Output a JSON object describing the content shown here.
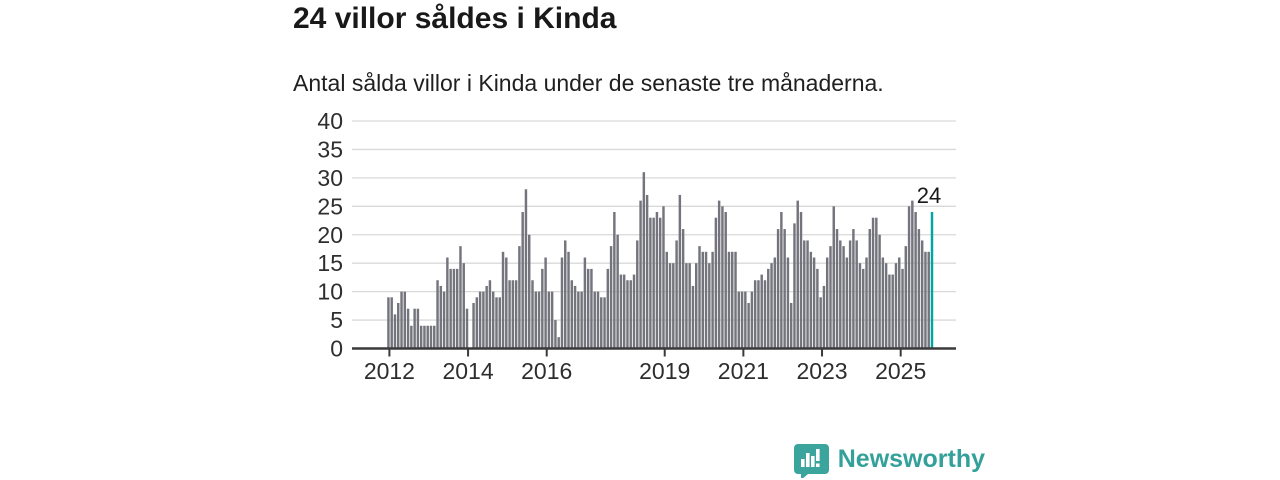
{
  "header": {
    "title": "24 villor såldes i Kinda",
    "subtitle": "Antal sålda villor i Kinda under de senaste tre månaderna."
  },
  "chart_data": {
    "type": "bar",
    "title": "24 villor såldes i Kinda",
    "subtitle": "Antal sålda villor i Kinda under de senaste tre månaderna.",
    "ylabel": "",
    "xlabel": "",
    "ylim": [
      0,
      40
    ],
    "yticks": [
      0,
      5,
      10,
      15,
      20,
      25,
      30,
      35,
      40
    ],
    "grid": "horizontal",
    "x_tick_labels": [
      "2012",
      "2014",
      "2016",
      "2019",
      "2021",
      "2023",
      "2025"
    ],
    "x_tick_years": [
      2012,
      2014,
      2016,
      2019,
      2021,
      2023,
      2025
    ],
    "start_year": 2012,
    "frequency": "monthly",
    "values": [
      9,
      9,
      6,
      8,
      10,
      10,
      7,
      4,
      7,
      7,
      4,
      4,
      4,
      4,
      4,
      12,
      11,
      10,
      16,
      14,
      14,
      14,
      18,
      15,
      7,
      0,
      8,
      9,
      10,
      10,
      11,
      12,
      10,
      9,
      9,
      17,
      16,
      12,
      12,
      12,
      18,
      24,
      28,
      20,
      12,
      10,
      10,
      14,
      16,
      10,
      10,
      5,
      2,
      16,
      19,
      17,
      12,
      11,
      10,
      10,
      16,
      14,
      14,
      10,
      10,
      9,
      9,
      14,
      18,
      24,
      20,
      13,
      13,
      12,
      12,
      13,
      19,
      26,
      31,
      27,
      23,
      23,
      24,
      23,
      25,
      17,
      15,
      15,
      19,
      27,
      21,
      15,
      15,
      11,
      15,
      18,
      17,
      17,
      15,
      17,
      23,
      26,
      25,
      24,
      17,
      17,
      17,
      10,
      10,
      10,
      8,
      10,
      12,
      12,
      13,
      12,
      14,
      15,
      16,
      21,
      24,
      21,
      16,
      8,
      22,
      26,
      24,
      19,
      19,
      17,
      16,
      14,
      9,
      11,
      16,
      18,
      25,
      21,
      19,
      18,
      16,
      19,
      21,
      19,
      15,
      14,
      16,
      21,
      23,
      23,
      20,
      16,
      15,
      13,
      13,
      15,
      16,
      14,
      18,
      25,
      26,
      24,
      21,
      19,
      17,
      17,
      24
    ],
    "highlight": {
      "last_bar": true,
      "value": 24,
      "label": "24"
    },
    "colors": {
      "bar": "#74747d",
      "highlight": "#00a5a4",
      "gridline": "#d9d9d9",
      "axis": "#3a3a3a",
      "axis_text": "#2e2e2e",
      "annotation_text": "#191919"
    }
  },
  "footer": {
    "brand": "Newsworthy",
    "logo_icon": "chart-speech-bubble-icon",
    "brand_color": "#33a19a"
  }
}
